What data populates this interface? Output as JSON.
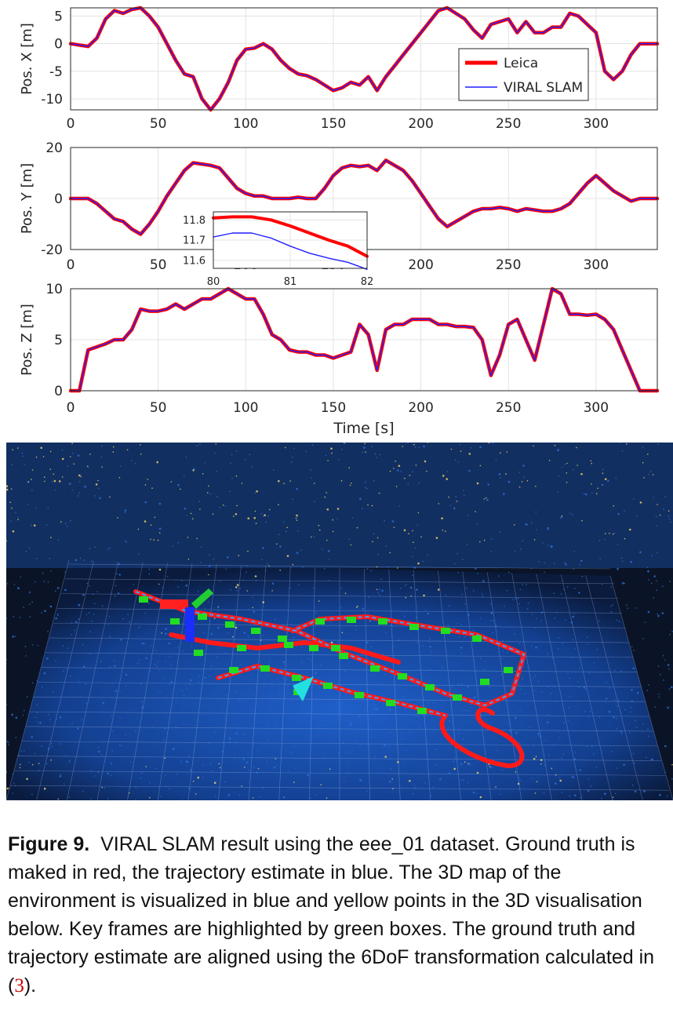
{
  "figure": {
    "caption_label": "Figure 9.",
    "caption_text": "VIRAL SLAM result using the eee_01 dataset. Ground truth is maked in red, the trajectory estimate in blue. The 3D map of the environment is visualized in blue and yellow points in the 3D visualisation below. Key frames are highlighted by green boxes. The ground truth and trajectory estimate are aligned using the 6DoF transformation calculated in (",
    "caption_ref": "3",
    "caption_end": ")."
  },
  "colors": {
    "leica": "#ff0000",
    "viral": "#1f1fff",
    "keyframe": "#22dd22",
    "map_blue": "#2a6fd6",
    "map_yellow": "#f2d36b"
  },
  "chart_data": [
    {
      "type": "line",
      "ylabel": "Pos. X [m]",
      "xlim": [
        0,
        335
      ],
      "ylim": [
        -12,
        6.5
      ],
      "yticks": [
        5,
        0,
        -5,
        -10
      ],
      "xticks": [
        0,
        50,
        100,
        150,
        200,
        250,
        300
      ],
      "legend": {
        "placement": "right",
        "entries": [
          "Leica",
          "VIRAL SLAM"
        ]
      },
      "x": [
        0,
        10,
        15,
        20,
        25,
        30,
        35,
        40,
        45,
        50,
        55,
        60,
        65,
        70,
        75,
        80,
        85,
        90,
        95,
        100,
        105,
        110,
        115,
        120,
        125,
        130,
        135,
        140,
        145,
        150,
        155,
        160,
        165,
        170,
        175,
        180,
        185,
        190,
        195,
        200,
        205,
        210,
        215,
        220,
        225,
        230,
        235,
        240,
        245,
        250,
        255,
        260,
        265,
        270,
        275,
        280,
        285,
        290,
        295,
        300,
        305,
        310,
        315,
        320,
        325,
        330,
        335
      ],
      "series": [
        {
          "name": "Leica",
          "values": [
            0,
            -0.5,
            1,
            4.5,
            6,
            5.5,
            6.2,
            6.5,
            5,
            3,
            0,
            -3,
            -5.5,
            -6,
            -10,
            -12,
            -10,
            -7,
            -3,
            -1,
            -0.8,
            0,
            -1,
            -3,
            -4.5,
            -5.5,
            -5.8,
            -6.5,
            -7.5,
            -8.5,
            -8,
            -7,
            -7.5,
            -6,
            -8.5,
            -6,
            -4,
            -2,
            0,
            2,
            4,
            6,
            6.5,
            5.5,
            4.5,
            2.5,
            1,
            3.5,
            4,
            4.5,
            2,
            4,
            2,
            2,
            3,
            3,
            5.5,
            5,
            3.5,
            2,
            -5,
            -6.5,
            -5,
            -2,
            0,
            0,
            0
          ]
        },
        {
          "name": "VIRAL SLAM",
          "values": [
            0,
            -0.5,
            1,
            4.5,
            6,
            5.5,
            6.2,
            6.5,
            5,
            3,
            0,
            -3,
            -5.5,
            -6,
            -10,
            -12,
            -10,
            -7,
            -3,
            -1,
            -0.8,
            0,
            -1,
            -3,
            -4.5,
            -5.5,
            -5.8,
            -6.5,
            -7.5,
            -8.5,
            -8,
            -7,
            -7.5,
            -6,
            -8.5,
            -6,
            -4,
            -2,
            0,
            2,
            4,
            6,
            6.5,
            5.5,
            4.5,
            2.5,
            1,
            3.5,
            4,
            4.5,
            2,
            4,
            2,
            2,
            3,
            3,
            5.5,
            5,
            3.5,
            2,
            -5,
            -6.5,
            -5,
            -2,
            0,
            0,
            0
          ]
        }
      ]
    },
    {
      "type": "line",
      "ylabel": "Pos. Y [m]",
      "xlim": [
        0,
        335
      ],
      "ylim": [
        -20,
        20
      ],
      "yticks": [
        20,
        0,
        -20
      ],
      "xticks": [
        0,
        50,
        100,
        150,
        200,
        250,
        300
      ],
      "x": [
        0,
        10,
        15,
        20,
        25,
        30,
        35,
        40,
        45,
        50,
        55,
        60,
        65,
        70,
        75,
        80,
        85,
        90,
        95,
        100,
        105,
        110,
        115,
        120,
        125,
        130,
        135,
        140,
        145,
        150,
        155,
        160,
        165,
        170,
        175,
        180,
        185,
        190,
        195,
        200,
        205,
        210,
        215,
        220,
        225,
        230,
        235,
        240,
        245,
        250,
        255,
        260,
        265,
        270,
        275,
        280,
        285,
        290,
        295,
        300,
        305,
        310,
        315,
        320,
        325,
        330,
        335
      ],
      "series": [
        {
          "name": "Leica",
          "values": [
            0,
            0,
            -2,
            -5,
            -8,
            -9,
            -12,
            -14,
            -10,
            -5,
            1,
            6,
            11,
            14,
            13.5,
            13,
            12,
            8,
            4,
            2,
            1,
            1,
            0,
            0,
            0,
            0.5,
            0,
            0,
            4,
            9,
            12,
            13,
            12.5,
            13,
            11,
            15,
            13,
            11,
            7,
            2,
            -3,
            -8,
            -11,
            -9,
            -7,
            -5,
            -4,
            -4,
            -3.5,
            -4,
            -5,
            -4,
            -4.5,
            -5,
            -5,
            -4,
            -2,
            2,
            6,
            9,
            6,
            3,
            1,
            -1,
            0,
            0,
            0
          ]
        },
        {
          "name": "VIRAL SLAM",
          "values": [
            0,
            0,
            -2,
            -5,
            -8,
            -9,
            -12,
            -14,
            -10,
            -5,
            1,
            6,
            11,
            14,
            13.5,
            13,
            12,
            8,
            4,
            2,
            1,
            1,
            0,
            0,
            0,
            0.5,
            0,
            0,
            4,
            9,
            12,
            13,
            12.5,
            13,
            11,
            15,
            13,
            11,
            7,
            2,
            -3,
            -8,
            -11,
            -9,
            -7,
            -5,
            -4,
            -4,
            -3.5,
            -4,
            -5,
            -4,
            -4.5,
            -5,
            -5,
            -4,
            -2,
            2,
            6,
            9,
            6,
            3,
            1,
            -1,
            0,
            0,
            0
          ]
        }
      ]
    },
    {
      "type": "line",
      "xlim": [
        80,
        82
      ],
      "ylim": [
        11.56,
        11.84
      ],
      "yticks": [
        11.8,
        11.7,
        11.6
      ],
      "xticks": [
        80,
        81,
        82
      ],
      "x": [
        80,
        80.25,
        80.5,
        80.75,
        81,
        81.25,
        81.5,
        81.75,
        82
      ],
      "series": [
        {
          "name": "Leica",
          "values": [
            11.81,
            11.815,
            11.815,
            11.8,
            11.77,
            11.735,
            11.7,
            11.67,
            11.62
          ]
        },
        {
          "name": "VIRAL SLAM",
          "values": [
            11.715,
            11.735,
            11.735,
            11.71,
            11.67,
            11.635,
            11.61,
            11.59,
            11.555
          ]
        }
      ]
    },
    {
      "type": "line",
      "ylabel": "Pos. Z [m]",
      "xlabel": "Time [s]",
      "xlim": [
        0,
        335
      ],
      "ylim": [
        0,
        10
      ],
      "yticks": [
        10,
        5,
        0
      ],
      "xticks": [
        0,
        50,
        100,
        150,
        200,
        250,
        300
      ],
      "x": [
        0,
        5,
        10,
        15,
        20,
        25,
        30,
        35,
        40,
        45,
        50,
        55,
        60,
        65,
        70,
        75,
        80,
        85,
        90,
        95,
        100,
        105,
        110,
        115,
        120,
        125,
        130,
        135,
        140,
        145,
        150,
        155,
        160,
        165,
        170,
        175,
        180,
        185,
        190,
        195,
        200,
        205,
        210,
        215,
        220,
        225,
        230,
        235,
        240,
        245,
        250,
        255,
        260,
        265,
        270,
        275,
        280,
        285,
        290,
        295,
        300,
        305,
        310,
        315,
        320,
        325,
        330,
        335
      ],
      "series": [
        {
          "name": "Leica",
          "values": [
            0,
            0,
            4,
            4.3,
            4.6,
            5,
            5,
            6,
            8,
            7.8,
            7.8,
            8,
            8.5,
            8,
            8.5,
            9,
            9,
            9.5,
            10,
            9.5,
            9,
            9,
            7.5,
            5.5,
            5,
            4,
            3.8,
            3.8,
            3.5,
            3.5,
            3.2,
            3.5,
            3.8,
            6.5,
            5.5,
            2,
            6,
            6.5,
            6.5,
            7,
            7,
            7,
            6.5,
            6.5,
            6.3,
            6.3,
            6.2,
            5,
            1.5,
            3.5,
            6.5,
            7,
            5,
            3,
            6.5,
            10,
            9.5,
            7.5,
            7.5,
            7.4,
            7.5,
            7,
            6,
            4,
            2,
            0,
            0,
            0
          ]
        },
        {
          "name": "VIRAL SLAM",
          "values": [
            0,
            0,
            4,
            4.3,
            4.6,
            5,
            5,
            6,
            8,
            7.8,
            7.8,
            8,
            8.5,
            8,
            8.5,
            9,
            9,
            9.5,
            10,
            9.5,
            9,
            9,
            7.5,
            5.5,
            5,
            4,
            3.8,
            3.8,
            3.5,
            3.5,
            3.2,
            3.5,
            3.8,
            6.5,
            5.5,
            2,
            6,
            6.5,
            6.5,
            7,
            7,
            7,
            6.5,
            6.5,
            6.3,
            6.3,
            6.2,
            5,
            1.5,
            3.5,
            6.5,
            7,
            5,
            3,
            6.5,
            10,
            9.5,
            7.5,
            7.5,
            7.4,
            7.5,
            7,
            6,
            4,
            2,
            0,
            0,
            0
          ]
        }
      ]
    }
  ]
}
